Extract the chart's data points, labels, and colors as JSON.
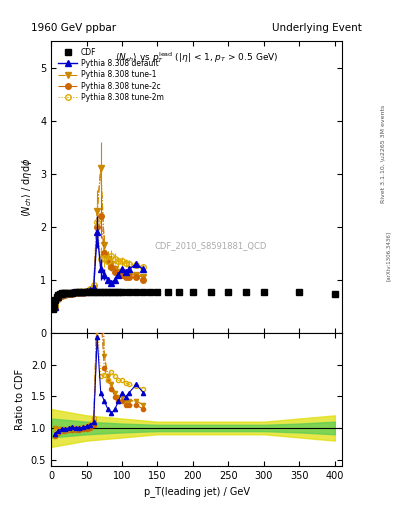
{
  "title_left": "1960 GeV ppbar",
  "title_right": "Underlying Event",
  "subtitle": "<N_{ch}> vs p_T^{lead} (|\\eta| < 1, p_T > 0.5 GeV)",
  "watermark": "CDF_2010_S8591881_QCD",
  "ylabel_main": "<N_{ch}> / d\\eta d\\phi",
  "ylabel_ratio": "Ratio to CDF",
  "xlabel": "p_T(leading jet) / GeV",
  "right_label": "Rivet 3.1.10, \\u2265 3M events",
  "arxiv_label": "[arXiv:1306.3436]",
  "ylim_main": [
    0,
    5.5
  ],
  "ylim_ratio": [
    0.4,
    2.5
  ],
  "xlim": [
    0,
    410
  ],
  "cdf_x": [
    2,
    4,
    6,
    8,
    10,
    12,
    14,
    16,
    18,
    20,
    25,
    30,
    35,
    40,
    45,
    50,
    55,
    60,
    65,
    70,
    75,
    80,
    85,
    90,
    95,
    100,
    110,
    120,
    130,
    140,
    150,
    165,
    180,
    200,
    225,
    250,
    275,
    300,
    350,
    400
  ],
  "cdf_y": [
    0.45,
    0.55,
    0.62,
    0.68,
    0.71,
    0.73,
    0.74,
    0.75,
    0.75,
    0.76,
    0.76,
    0.76,
    0.77,
    0.77,
    0.77,
    0.78,
    0.78,
    0.78,
    0.78,
    0.77,
    0.77,
    0.77,
    0.77,
    0.77,
    0.77,
    0.77,
    0.77,
    0.77,
    0.77,
    0.77,
    0.77,
    0.77,
    0.77,
    0.77,
    0.77,
    0.77,
    0.77,
    0.77,
    0.77,
    0.73
  ],
  "cdf_yerr": [
    0.03,
    0.03,
    0.02,
    0.02,
    0.02,
    0.02,
    0.02,
    0.02,
    0.01,
    0.01,
    0.01,
    0.01,
    0.01,
    0.01,
    0.01,
    0.01,
    0.01,
    0.01,
    0.01,
    0.01,
    0.01,
    0.01,
    0.01,
    0.01,
    0.01,
    0.01,
    0.01,
    0.01,
    0.01,
    0.01,
    0.01,
    0.01,
    0.01,
    0.01,
    0.01,
    0.01,
    0.01,
    0.01,
    0.01,
    0.02
  ],
  "pythia_default_x": [
    5,
    10,
    15,
    20,
    25,
    30,
    35,
    40,
    45,
    50,
    55,
    60,
    65,
    70,
    75,
    80,
    85,
    90,
    95,
    100,
    105,
    110,
    120,
    130
  ],
  "pythia_default_y": [
    0.5,
    0.68,
    0.73,
    0.75,
    0.76,
    0.77,
    0.77,
    0.77,
    0.78,
    0.8,
    0.82,
    0.85,
    1.9,
    1.2,
    1.1,
    1.0,
    0.95,
    1.0,
    1.1,
    1.2,
    1.15,
    1.2,
    1.3,
    1.2
  ],
  "pythia_default_yerr": [
    0.05,
    0.03,
    0.02,
    0.02,
    0.01,
    0.01,
    0.01,
    0.01,
    0.01,
    0.02,
    0.02,
    0.05,
    0.3,
    0.2,
    0.1,
    0.05,
    0.05,
    0.05,
    0.05,
    0.05,
    0.05,
    0.05,
    0.05,
    0.05
  ],
  "tune1_x": [
    5,
    10,
    15,
    20,
    25,
    30,
    35,
    40,
    45,
    50,
    55,
    60,
    65,
    70,
    75,
    80,
    85,
    90,
    95,
    100,
    105,
    110,
    120,
    130
  ],
  "tune1_y": [
    0.55,
    0.7,
    0.73,
    0.74,
    0.75,
    0.76,
    0.76,
    0.77,
    0.77,
    0.78,
    0.8,
    0.85,
    2.3,
    3.1,
    1.65,
    1.4,
    1.3,
    1.2,
    1.15,
    1.15,
    1.1,
    1.1,
    1.1,
    1.05
  ],
  "tune1_yerr": [
    0.05,
    0.02,
    0.02,
    0.01,
    0.01,
    0.01,
    0.01,
    0.01,
    0.01,
    0.02,
    0.03,
    0.05,
    0.4,
    0.5,
    0.2,
    0.15,
    0.1,
    0.08,
    0.05,
    0.05,
    0.05,
    0.05,
    0.05,
    0.05
  ],
  "tune2c_x": [
    5,
    10,
    15,
    20,
    25,
    30,
    35,
    40,
    45,
    50,
    55,
    60,
    65,
    70,
    75,
    80,
    85,
    90,
    95,
    100,
    105,
    110,
    120,
    130
  ],
  "tune2c_y": [
    0.48,
    0.65,
    0.7,
    0.72,
    0.73,
    0.74,
    0.75,
    0.75,
    0.76,
    0.77,
    0.78,
    0.82,
    2.0,
    2.2,
    1.5,
    1.35,
    1.25,
    1.15,
    1.1,
    1.1,
    1.05,
    1.05,
    1.05,
    1.0
  ],
  "tune2c_yerr": [
    0.04,
    0.02,
    0.02,
    0.01,
    0.01,
    0.01,
    0.01,
    0.01,
    0.01,
    0.02,
    0.02,
    0.05,
    0.35,
    0.4,
    0.18,
    0.12,
    0.08,
    0.06,
    0.05,
    0.05,
    0.04,
    0.04,
    0.04,
    0.04
  ],
  "tune2m_x": [
    5,
    10,
    15,
    20,
    25,
    30,
    35,
    40,
    45,
    50,
    55,
    60,
    65,
    70,
    75,
    80,
    85,
    90,
    95,
    100,
    105,
    110,
    120,
    130
  ],
  "tune2m_y": [
    0.52,
    0.67,
    0.72,
    0.74,
    0.75,
    0.76,
    0.76,
    0.77,
    0.78,
    0.8,
    0.83,
    0.9,
    2.1,
    1.4,
    1.42,
    1.35,
    1.45,
    1.4,
    1.35,
    1.35,
    1.32,
    1.3,
    1.28,
    1.25
  ],
  "tune2m_yerr": [
    0.04,
    0.02,
    0.02,
    0.01,
    0.01,
    0.01,
    0.01,
    0.01,
    0.01,
    0.02,
    0.03,
    0.05,
    0.38,
    0.22,
    0.18,
    0.14,
    0.12,
    0.1,
    0.08,
    0.08,
    0.07,
    0.07,
    0.06,
    0.06
  ],
  "colors": {
    "cdf": "#000000",
    "pythia_default": "#0000cc",
    "tune1": "#cc8800",
    "tune2c": "#cc6600",
    "tune2m": "#ddaa00"
  },
  "ratio_band_green_x": [
    0,
    50,
    100,
    150,
    200,
    250,
    300,
    350,
    400
  ],
  "ratio_band_green_y_lo": [
    0.85,
    0.9,
    0.93,
    0.95,
    0.95,
    0.95,
    0.95,
    0.93,
    0.9
  ],
  "ratio_band_green_y_hi": [
    1.15,
    1.1,
    1.07,
    1.05,
    1.05,
    1.05,
    1.05,
    1.07,
    1.1
  ],
  "ratio_band_yellow_x": [
    0,
    50,
    100,
    150,
    200,
    250,
    300,
    350,
    400
  ],
  "ratio_band_yellow_y_lo": [
    0.7,
    0.8,
    0.85,
    0.9,
    0.9,
    0.9,
    0.9,
    0.85,
    0.8
  ],
  "ratio_band_yellow_y_hi": [
    1.3,
    1.2,
    1.15,
    1.1,
    1.1,
    1.1,
    1.1,
    1.15,
    1.2
  ]
}
